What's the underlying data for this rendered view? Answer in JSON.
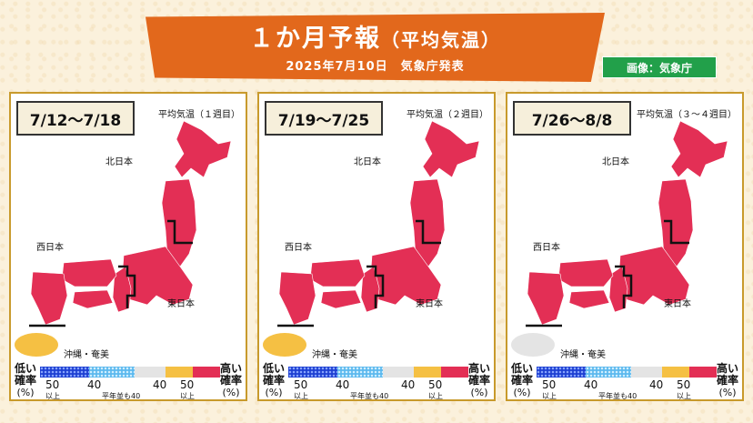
{
  "header": {
    "title_main": "１か月予報",
    "title_sub": "（平均気温）",
    "date": "2025年7月10日　気象庁発表",
    "credit": "画像：気象庁"
  },
  "colors": {
    "orange": "#e2681c",
    "high": "#e32f55",
    "normal": "#e4e4e4",
    "low_dark": "#1d3fd1",
    "low_light": "#5cb9ee",
    "okinawa_fill_1": "#f5c043",
    "okinawa_fill_3": "#e4e4e4"
  },
  "regions": {
    "north": "北日本",
    "west": "西日本",
    "east": "東日本",
    "okinawa": "沖縄・奄美"
  },
  "legend": {
    "low": "低い",
    "low2": "確率",
    "high": "高い",
    "high2": "確率",
    "pct": "(%)",
    "t50": "50",
    "t40": "40",
    "above": "以上",
    "normal40": "平年並も40"
  },
  "panels": [
    {
      "period": "7/12～7/18",
      "type": "平均気温（１週目）",
      "okinawa": "yellow"
    },
    {
      "period": "7/19～7/25",
      "type": "平均気温（２週目）",
      "okinawa": "yellow"
    },
    {
      "period": "7/26～8/8",
      "type": "平均気温（３～４週目）",
      "okinawa": "grey"
    }
  ]
}
